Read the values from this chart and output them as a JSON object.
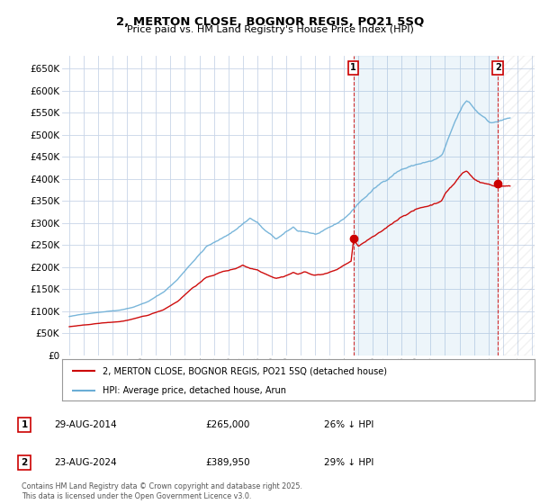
{
  "title": "2, MERTON CLOSE, BOGNOR REGIS, PO21 5SQ",
  "subtitle": "Price paid vs. HM Land Registry's House Price Index (HPI)",
  "ylim": [
    0,
    680000
  ],
  "yticks": [
    0,
    50000,
    100000,
    150000,
    200000,
    250000,
    300000,
    350000,
    400000,
    450000,
    500000,
    550000,
    600000,
    650000
  ],
  "hpi_color": "#6baed6",
  "price_color": "#cc0000",
  "fill_color": "#ddeeff",
  "background_color": "#ffffff",
  "grid_color": "#c8d4e8",
  "sale1_x": 2014.66,
  "sale1_y": 265000,
  "sale2_x": 2024.66,
  "sale2_y": 389950,
  "legend_label_price": "2, MERTON CLOSE, BOGNOR REGIS, PO21 5SQ (detached house)",
  "legend_label_hpi": "HPI: Average price, detached house, Arun",
  "footnote": "Contains HM Land Registry data © Crown copyright and database right 2025.\nThis data is licensed under the Open Government Licence v3.0.",
  "table": [
    {
      "num": "1",
      "date": "29-AUG-2014",
      "price": "£265,000",
      "hpi": "26% ↓ HPI"
    },
    {
      "num": "2",
      "date": "23-AUG-2024",
      "price": "£389,950",
      "hpi": "29% ↓ HPI"
    }
  ],
  "xmin": 1994.5,
  "xmax": 2027.2
}
